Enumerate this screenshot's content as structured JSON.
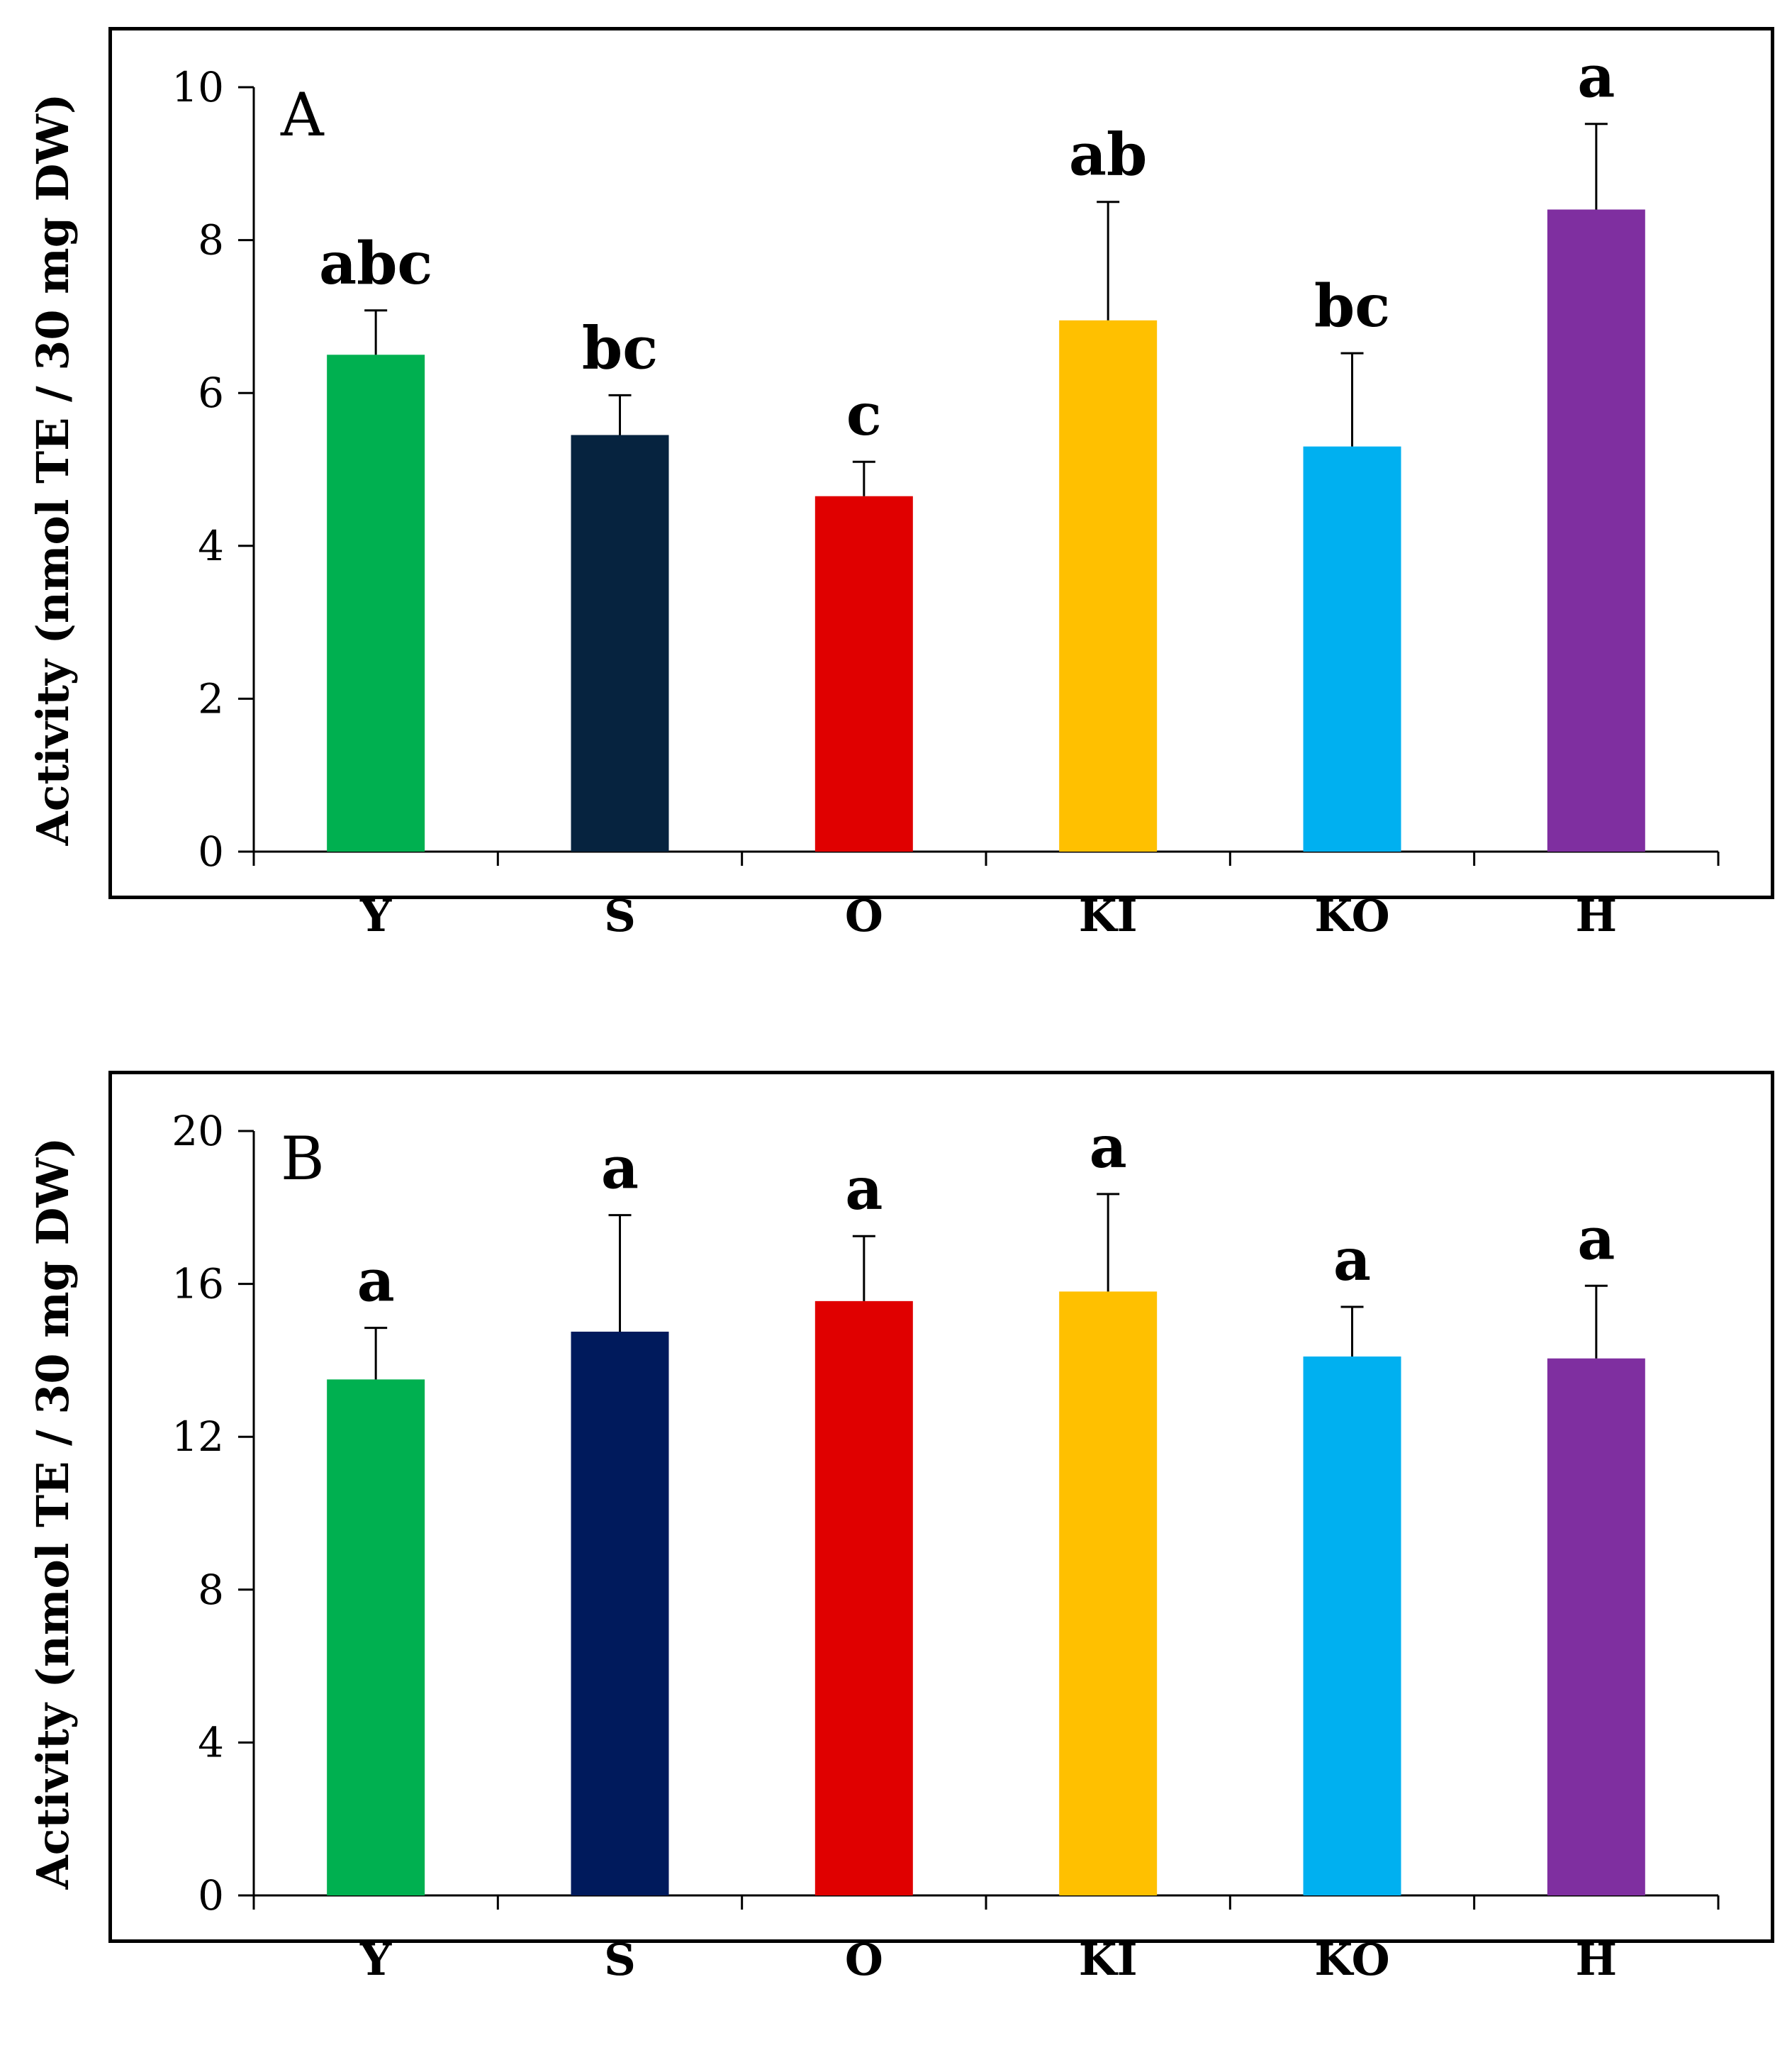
{
  "chart_data": [
    {
      "type": "bar",
      "panel": "A",
      "ylabel": "Activity (nmol TE / 30 mg DW)",
      "ylim": [
        0,
        10
      ],
      "yticks": [
        "0",
        "2",
        "4",
        "6",
        "8",
        "10"
      ],
      "categories": [
        "Y",
        "S",
        "O",
        "KI",
        "KO",
        "H"
      ],
      "values": [
        6.5,
        5.45,
        4.65,
        6.95,
        5.3,
        8.4
      ],
      "errors": [
        0.58,
        0.52,
        0.45,
        1.55,
        1.22,
        1.12
      ],
      "significance": [
        "abc",
        "bc",
        "c",
        "ab",
        "bc",
        "a"
      ],
      "colors": [
        "#00b050",
        "#06233f",
        "#e00000",
        "#ffc000",
        "#00b0f0",
        "#7f2fa0"
      ]
    },
    {
      "type": "bar",
      "panel": "B",
      "ylabel": "Activity (nmol TE / 30 mg DW)",
      "ylim": [
        0,
        20
      ],
      "yticks": [
        "0",
        "4",
        "8",
        "12",
        "16",
        "20"
      ],
      "categories": [
        "Y",
        "S",
        "O",
        "KI",
        "KO",
        "H"
      ],
      "values": [
        13.5,
        14.75,
        15.55,
        15.8,
        14.1,
        14.05
      ],
      "errors": [
        1.35,
        3.05,
        1.7,
        2.55,
        1.3,
        1.9
      ],
      "significance": [
        "a",
        "a",
        "a",
        "a",
        "a",
        "a"
      ],
      "colors": [
        "#00b050",
        "#001a5c",
        "#e00000",
        "#ffc000",
        "#00b0f0",
        "#7f2fa0"
      ]
    }
  ]
}
